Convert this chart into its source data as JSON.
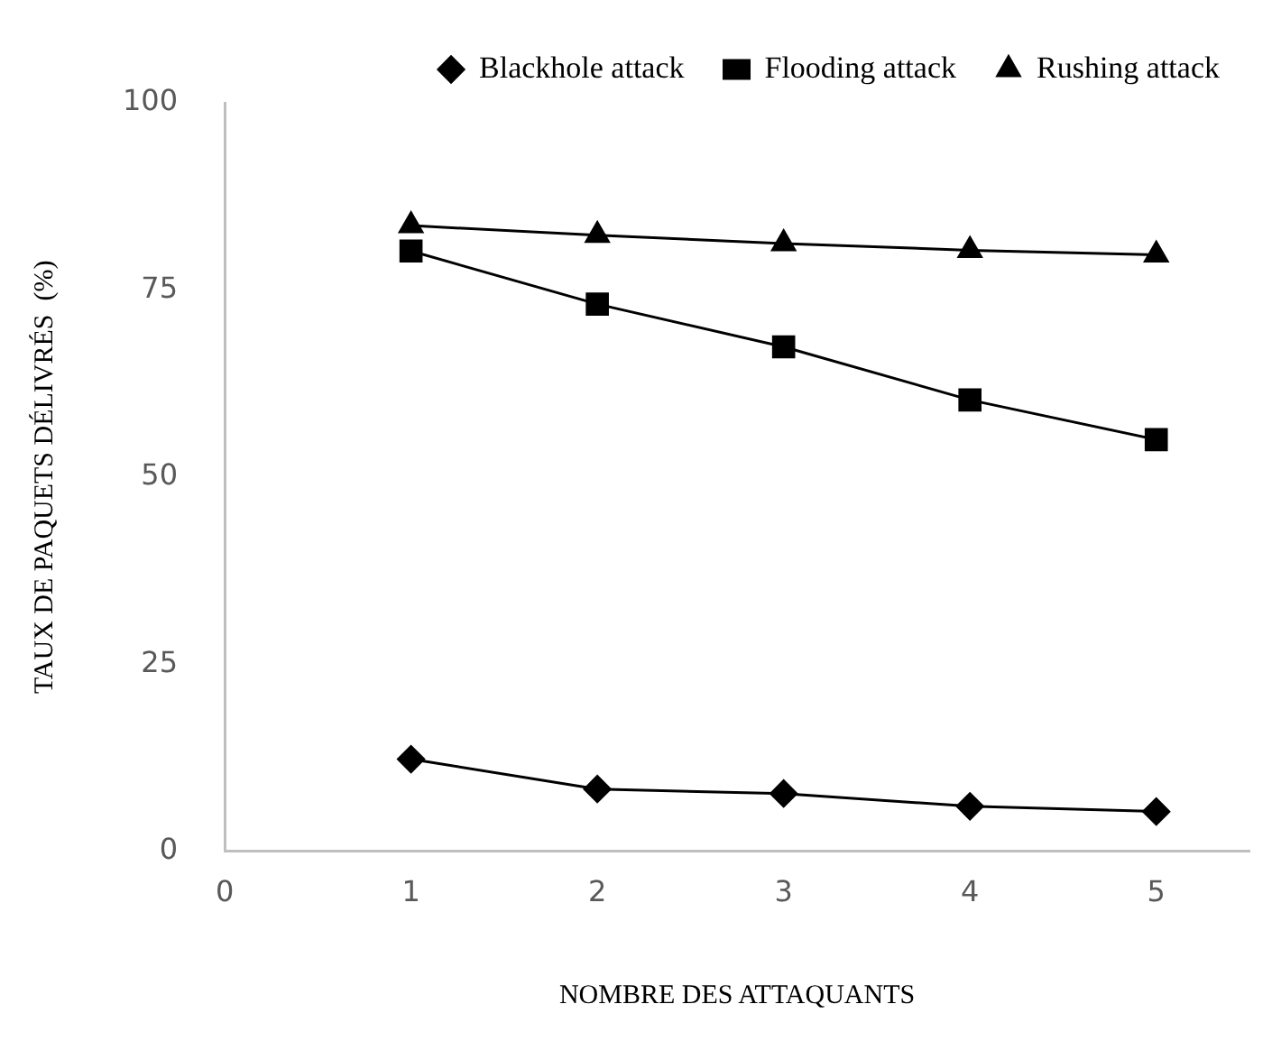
{
  "chart_data": {
    "type": "line",
    "xlabel": "NOMBRE DES ATTAQUANTS",
    "ylabel": "TAUX DE PAQUETS DÉLIVRÉS  (%)",
    "x": [
      1,
      2,
      3,
      4,
      5
    ],
    "xlim": [
      0,
      5.5
    ],
    "xticks": [
      0,
      1,
      2,
      3,
      4,
      5
    ],
    "ylim": [
      0,
      100
    ],
    "yticks": [
      0,
      25,
      50,
      75,
      100
    ],
    "grid": false,
    "legend": "top",
    "line_style": "solid",
    "series": [
      {
        "name": "Blackhole attack",
        "color": "#000000",
        "marker": "diamond",
        "values": [
          12.3,
          8.3,
          7.7,
          6.0,
          5.3
        ]
      },
      {
        "name": "Flooding attack",
        "color": "#000000",
        "marker": "square",
        "values": [
          80.2,
          73.1,
          67.4,
          60.3,
          55.0
        ]
      },
      {
        "name": "Rushing attack",
        "color": "#000000",
        "marker": "triangle",
        "values": [
          83.6,
          82.3,
          81.2,
          80.3,
          79.7
        ]
      }
    ]
  }
}
